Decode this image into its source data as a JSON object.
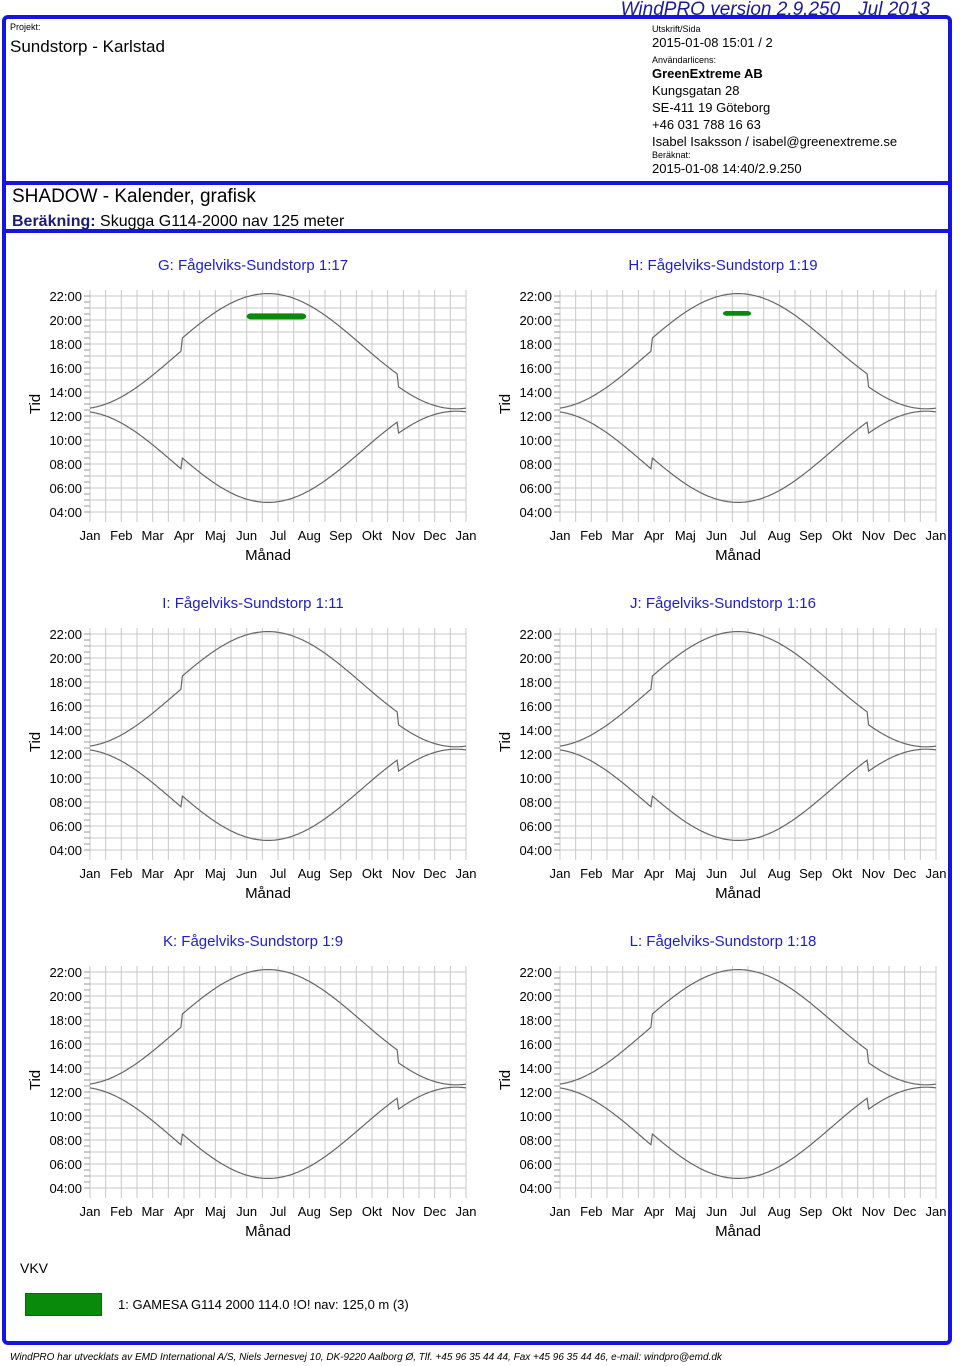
{
  "header": {
    "version": "WindPRO version 2.9.250",
    "version_date": "Jul 2013",
    "project_label": "Projekt:",
    "project_name": "Sundstorp - Karlstad",
    "print_label": "Utskrift/Sida",
    "print_value": "2015-01-08 15:01 / 2",
    "license_label": "Användarlicens:",
    "license_company": "GreenExtreme AB",
    "license_street": "Kungsgatan 28",
    "license_city": "SE-411 19 Göteborg",
    "license_phone": "+46 031 788 16 63",
    "license_contact": "Isabel Isaksson / isabel@greenextreme.se",
    "calc_label": "Beräknat:",
    "calc_value": "2015-01-08 14:40/2.9.250"
  },
  "doc": {
    "title": "SHADOW - Kalender, grafisk",
    "calc_prefix": "Beräkning:",
    "calc_name": "Skugga G114-2000 nav 125 meter"
  },
  "chart_data": [
    {
      "type": "scatter",
      "title": "G: Fågelviks-Sundstorp 1:17",
      "xlabel": "Månad",
      "ylabel": "Tid",
      "x_ticks": [
        "Jan",
        "Feb",
        "Mar",
        "Apr",
        "Maj",
        "Jun",
        "Jul",
        "Aug",
        "Sep",
        "Okt",
        "Nov",
        "Dec",
        "Jan"
      ],
      "y_ticks": [
        "04:00",
        "06:00",
        "08:00",
        "10:00",
        "12:00",
        "14:00",
        "16:00",
        "18:00",
        "20:00",
        "22:00"
      ],
      "ylim": [
        3.5,
        22.5
      ],
      "shadow_periods": [
        {
          "turbine": "1: GAMESA G114 2000 114.0 !O! nav: 125,0 m (3)",
          "month_from": 5.0,
          "month_to": 6.9,
          "time_from": 20.05,
          "time_to": 20.55,
          "color": "#0a8a0a"
        }
      ]
    },
    {
      "type": "scatter",
      "title": "H: Fågelviks-Sundstorp 1:19",
      "xlabel": "Månad",
      "ylabel": "Tid",
      "x_ticks": [
        "Jan",
        "Feb",
        "Mar",
        "Apr",
        "Maj",
        "Jun",
        "Jul",
        "Aug",
        "Sep",
        "Okt",
        "Nov",
        "Dec",
        "Jan"
      ],
      "y_ticks": [
        "04:00",
        "06:00",
        "08:00",
        "10:00",
        "12:00",
        "14:00",
        "16:00",
        "18:00",
        "20:00",
        "22:00"
      ],
      "ylim": [
        3.5,
        22.5
      ],
      "shadow_periods": [
        {
          "turbine": "1: GAMESA G114 2000 114.0 !O! nav: 125,0 m (3)",
          "month_from": 5.2,
          "month_to": 6.1,
          "time_from": 20.35,
          "time_to": 20.75,
          "color": "#0a8a0a"
        }
      ]
    },
    {
      "type": "scatter",
      "title": "I: Fågelviks-Sundstorp 1:11",
      "xlabel": "Månad",
      "ylabel": "Tid",
      "x_ticks": [
        "Jan",
        "Feb",
        "Mar",
        "Apr",
        "Maj",
        "Jun",
        "Jul",
        "Aug",
        "Sep",
        "Okt",
        "Nov",
        "Dec",
        "Jan"
      ],
      "y_ticks": [
        "04:00",
        "06:00",
        "08:00",
        "10:00",
        "12:00",
        "14:00",
        "16:00",
        "18:00",
        "20:00",
        "22:00"
      ],
      "ylim": [
        3.5,
        22.5
      ],
      "shadow_periods": []
    },
    {
      "type": "scatter",
      "title": "J: Fågelviks-Sundstorp 1:16",
      "xlabel": "Månad",
      "ylabel": "Tid",
      "x_ticks": [
        "Jan",
        "Feb",
        "Mar",
        "Apr",
        "Maj",
        "Jun",
        "Jul",
        "Aug",
        "Sep",
        "Okt",
        "Nov",
        "Dec",
        "Jan"
      ],
      "y_ticks": [
        "04:00",
        "06:00",
        "08:00",
        "10:00",
        "12:00",
        "14:00",
        "16:00",
        "18:00",
        "20:00",
        "22:00"
      ],
      "ylim": [
        3.5,
        22.5
      ],
      "shadow_periods": []
    },
    {
      "type": "scatter",
      "title": "K: Fågelviks-Sundstorp 1:9",
      "xlabel": "Månad",
      "ylabel": "Tid",
      "x_ticks": [
        "Jan",
        "Feb",
        "Mar",
        "Apr",
        "Maj",
        "Jun",
        "Jul",
        "Aug",
        "Sep",
        "Okt",
        "Nov",
        "Dec",
        "Jan"
      ],
      "y_ticks": [
        "04:00",
        "06:00",
        "08:00",
        "10:00",
        "12:00",
        "14:00",
        "16:00",
        "18:00",
        "20:00",
        "22:00"
      ],
      "ylim": [
        3.5,
        22.5
      ],
      "shadow_periods": []
    },
    {
      "type": "scatter",
      "title": "L: Fågelviks-Sundstorp 1:18",
      "xlabel": "Månad",
      "ylabel": "Tid",
      "x_ticks": [
        "Jan",
        "Feb",
        "Mar",
        "Apr",
        "Maj",
        "Jun",
        "Jul",
        "Aug",
        "Sep",
        "Okt",
        "Nov",
        "Dec",
        "Jan"
      ],
      "y_ticks": [
        "04:00",
        "06:00",
        "08:00",
        "10:00",
        "12:00",
        "14:00",
        "16:00",
        "18:00",
        "20:00",
        "22:00"
      ],
      "ylim": [
        3.5,
        22.5
      ],
      "shadow_periods": []
    }
  ],
  "legend": {
    "direction": "VKV",
    "entry": "1: GAMESA G114 2000 114.0 !O! nav: 125,0 m (3)",
    "color": "#0a8a0a"
  },
  "footer": "WindPRO har utvecklats av EMD International A/S, Niels Jernesvej 10, DK-9220 Aalborg Ø, Tlf. +45 96 35 44 44, Fax +45 96 35 44 46, e-mail: windpro@emd.dk"
}
